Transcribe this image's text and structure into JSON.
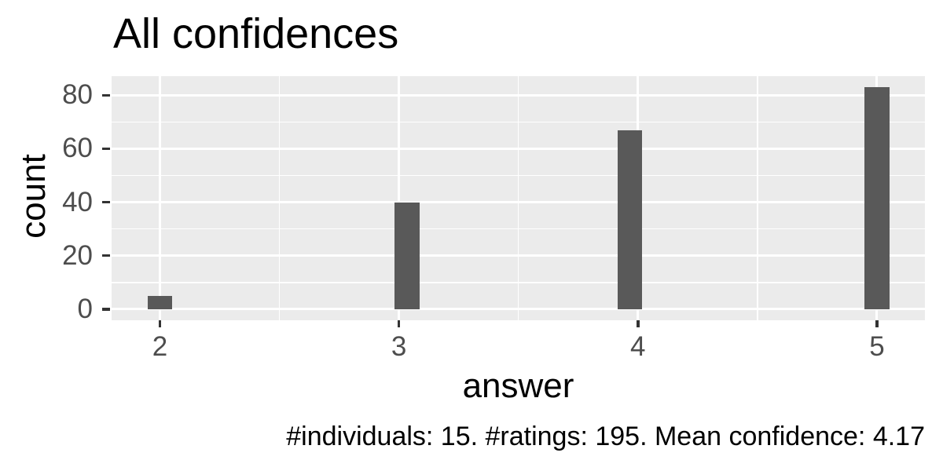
{
  "chart_data": {
    "type": "bar",
    "title": "All confidences",
    "xlabel": "answer",
    "ylabel": "count",
    "caption": "#individuals: 15. #ratings: 195. Mean confidence: 4.17",
    "categories": [
      2,
      3,
      4,
      5
    ],
    "values": [
      5,
      40,
      67,
      83
    ],
    "bar_centers_data": [
      2.0,
      3.0345,
      3.9655,
      5.0
    ],
    "bin_width_data": 0.10345,
    "x_ticks": [
      2,
      3,
      4,
      5
    ],
    "x_minor_ticks": [
      2.5,
      3.5,
      4.5
    ],
    "y_ticks": [
      0,
      20,
      40,
      60,
      80
    ],
    "y_minor_ticks": [
      10,
      30,
      50,
      70
    ],
    "xlim": [
      1.798,
      5.2007
    ],
    "ylim": [
      -4.15,
      87.15
    ],
    "grid": "on",
    "legend": "none",
    "colors": {
      "bar": "#595959",
      "panel_bg": "#EBEBEB",
      "gridline": "#FFFFFF",
      "tick_mark": "#333333",
      "tick_label": "#4D4D4D",
      "text": "#000000",
      "background": "#FFFFFF"
    }
  }
}
